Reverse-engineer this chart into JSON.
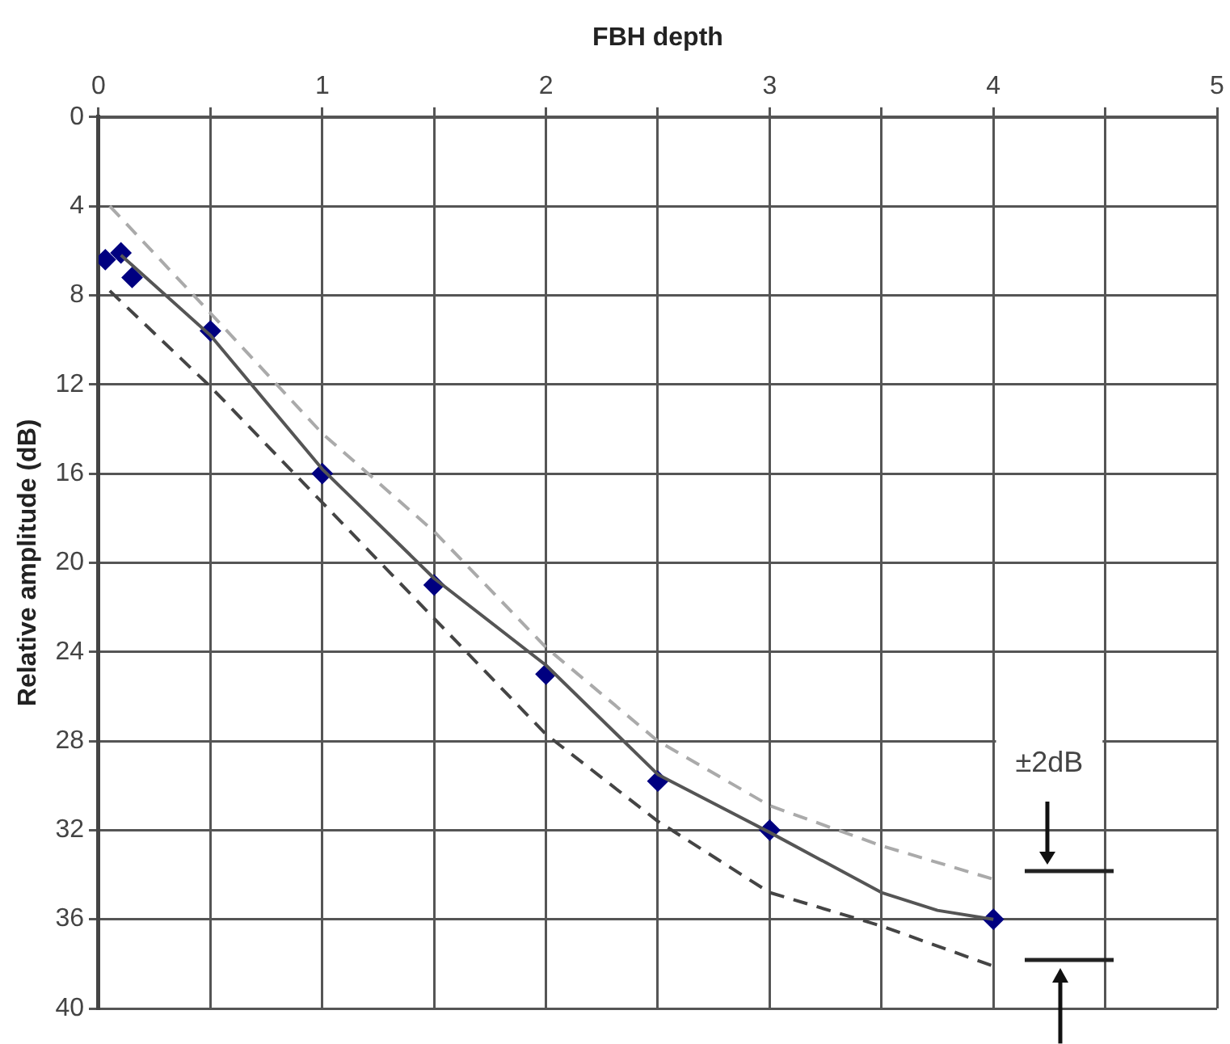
{
  "chart_data": {
    "type": "scatter",
    "xlabel": "FBH depth",
    "ylabel": "Relative amplitude (dB)",
    "xlim": [
      0,
      5
    ],
    "xticks": [
      0,
      {
        "value": 0.5,
        "label": null
      },
      1,
      {
        "value": 1.5,
        "label": null
      },
      2,
      {
        "value": 2.5,
        "label": null
      },
      3,
      {
        "value": 3.5,
        "label": null
      },
      4,
      {
        "value": 4.5,
        "label": null
      },
      5
    ],
    "ylim": [
      40,
      0
    ],
    "yticks": [
      0,
      4,
      8,
      12,
      16,
      20,
      24,
      28,
      32,
      36,
      40
    ],
    "grid": true,
    "legend": false,
    "series": [
      {
        "type": "line",
        "color": "#aaaaaa",
        "line_style": "dashed",
        "marker": "none",
        "x": [
          0.05,
          0.5,
          1,
          1.5,
          2,
          2.5,
          3,
          3.5,
          4
        ],
        "values": [
          4,
          8.8,
          14.2,
          18.6,
          23.8,
          28,
          30.9,
          32.7,
          34.2
        ]
      },
      {
        "type": "line",
        "color": "#444444",
        "line_style": "dashed",
        "marker": "none",
        "x": [
          0.05,
          0.5,
          1,
          1.5,
          2,
          2.5,
          3,
          3.5,
          4
        ],
        "values": [
          7.8,
          12.1,
          17.3,
          22.5,
          27.7,
          31.6,
          34.8,
          36.3,
          38.1
        ]
      },
      {
        "type": "line",
        "color": "#555555",
        "line_style": "solid",
        "marker": "none",
        "x": [
          0.1,
          0.5,
          1,
          1.5,
          2,
          2.5,
          3,
          3.5,
          3.75,
          4
        ],
        "values": [
          6.2,
          9.8,
          15.8,
          20.7,
          24.6,
          29.5,
          32.1,
          34.8,
          35.6,
          36
        ]
      },
      {
        "color": "#000080",
        "marker": "diamond",
        "x": [
          0.03,
          0.1,
          0.15,
          0.5,
          1,
          1.5,
          2,
          2.5,
          3,
          4
        ],
        "values": [
          6.4,
          6.1,
          7.2,
          9.6,
          16,
          21,
          25,
          29.8,
          32,
          36
        ]
      }
    ],
    "annotations": [
      "±2dB"
    ]
  }
}
